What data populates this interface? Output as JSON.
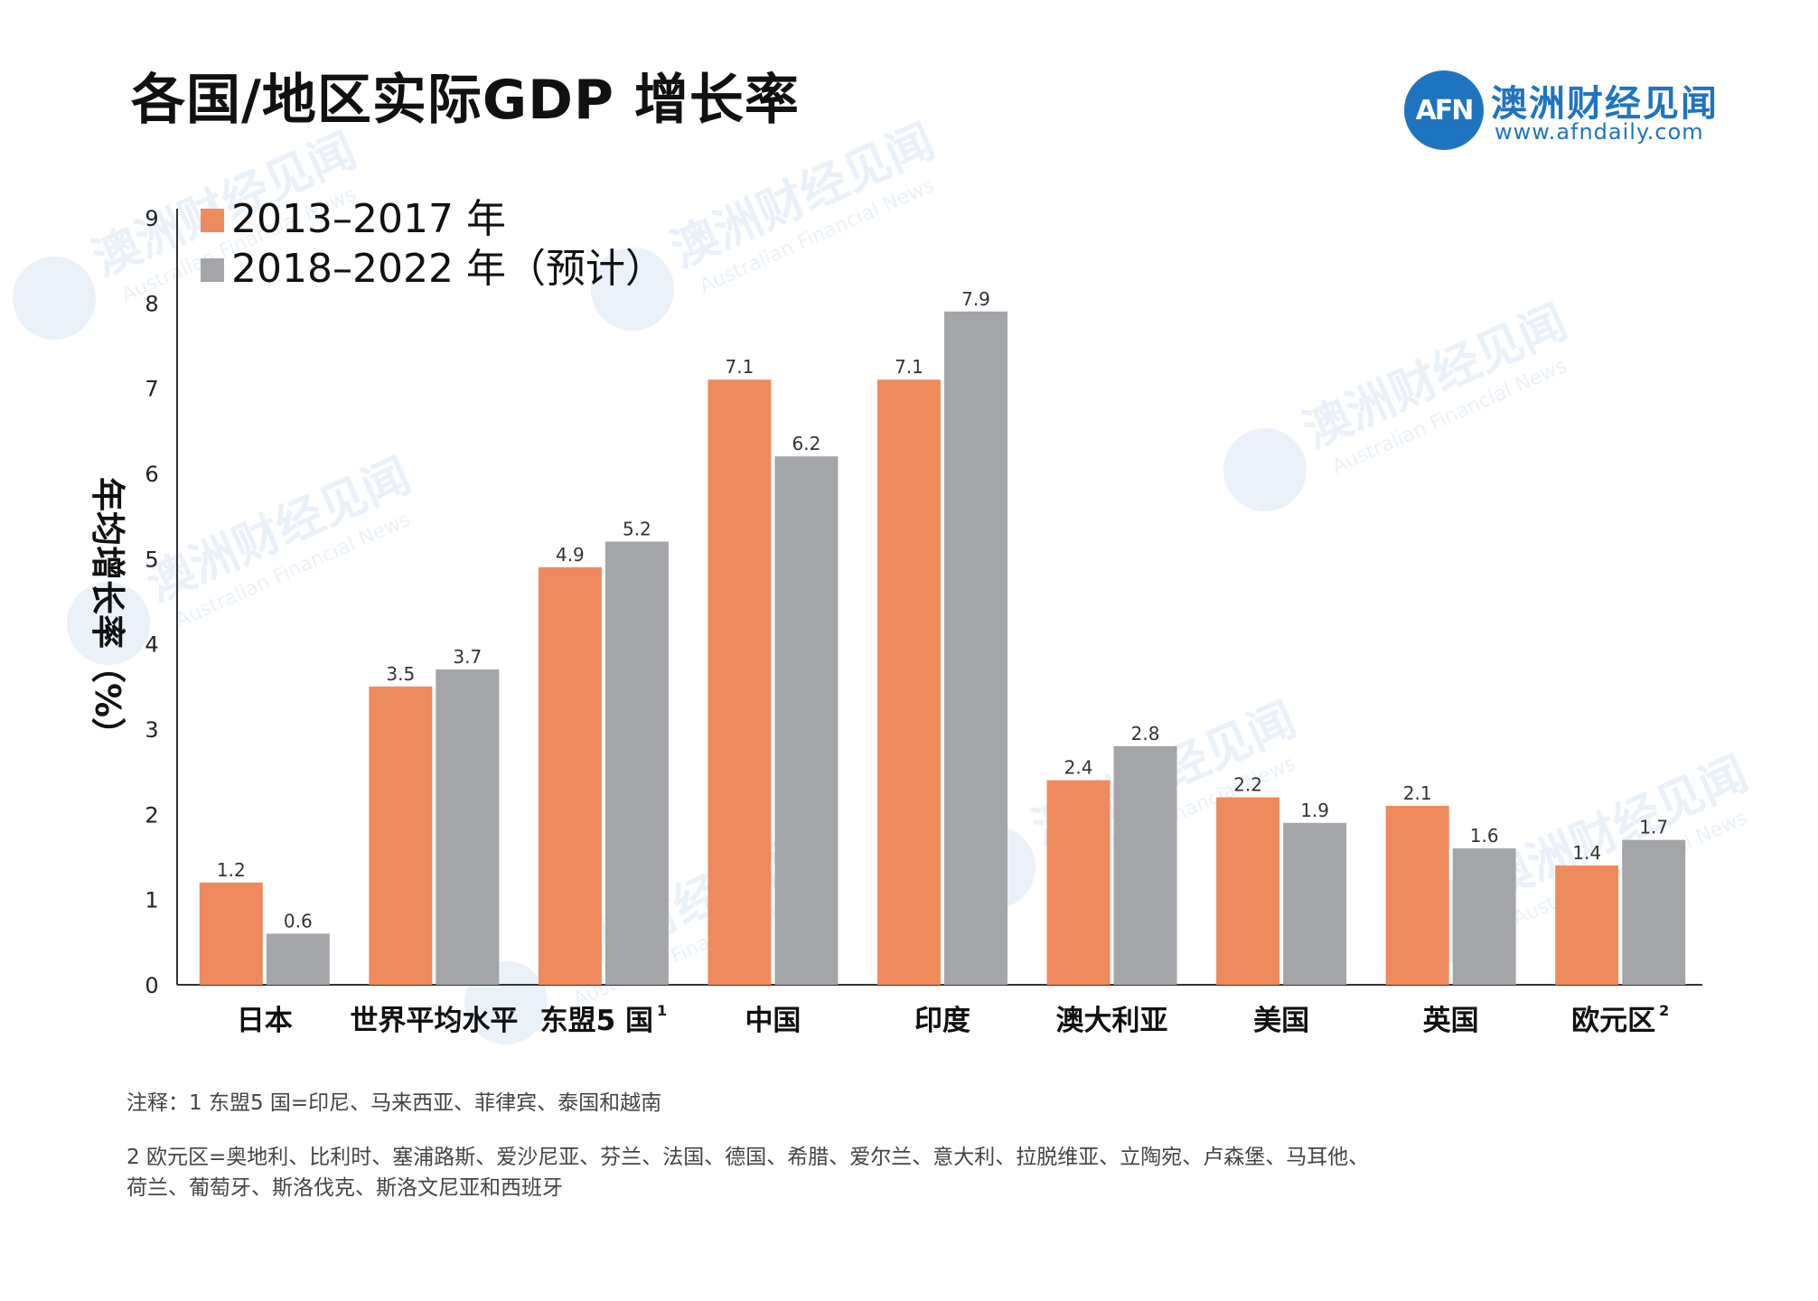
{
  "title": "各国/地区实际GDP 增长率",
  "logo": {
    "mark": "AFN",
    "name": "澳洲财经见闻",
    "url": "www.afndaily.com"
  },
  "watermark": {
    "name": "澳洲财经见闻",
    "sub": "Australian Financial News"
  },
  "colors": {
    "series1": "#ef8a5d",
    "series2": "#a3a5a8",
    "logo": "#1f74c0",
    "axis": "#333333"
  },
  "chart_data": {
    "type": "bar",
    "title": "各国/地区实际GDP 增长率",
    "ylabel": "年均增长率（%）",
    "xlabel": "",
    "ylim": [
      0,
      9
    ],
    "yticks": [
      "0",
      "1",
      "2",
      "3",
      "4",
      "5",
      "6",
      "7",
      "8",
      "9"
    ],
    "legend_position": "top-left",
    "grid": false,
    "categories": [
      "日本",
      "世界平均水平",
      "东盟5 国",
      "中国",
      "印度",
      "澳大利亚",
      "美国",
      "英国",
      "欧元区"
    ],
    "category_superscripts": [
      "",
      "",
      "1",
      "",
      "",
      "",
      "",
      "",
      "2"
    ],
    "series": [
      {
        "name": "2013–2017 年",
        "color": "#ef8a5d",
        "values": [
          1.2,
          3.5,
          4.9,
          7.1,
          7.1,
          2.4,
          2.2,
          2.1,
          1.4
        ],
        "labels": [
          "1.2",
          "3.5",
          "4.9",
          "7.1",
          "7.1",
          "2.4",
          "2.2",
          "2.1",
          "1.4"
        ]
      },
      {
        "name": "2018–2022 年（预计）",
        "color": "#a3a5a8",
        "values": [
          0.6,
          3.7,
          5.2,
          6.2,
          7.9,
          2.8,
          1.9,
          1.6,
          1.7
        ],
        "labels": [
          "0.6",
          "3.7",
          "5.2",
          "6.2",
          "7.9",
          "2.8",
          "1.9",
          "1.6",
          "1.7"
        ]
      }
    ]
  },
  "notes": {
    "line1": "注释：1 东盟5 国=印尼、马来西亚、菲律宾、泰国和越南",
    "line2": "2 欧元区=奥地利、比利时、塞浦路斯、爱沙尼亚、芬兰、法国、德国、希腊、爱尔兰、意大利、拉脱维亚、立陶宛、卢森堡、马耳他、",
    "line3": "荷兰、葡萄牙、斯洛伐克、斯洛文尼亚和西班牙"
  }
}
